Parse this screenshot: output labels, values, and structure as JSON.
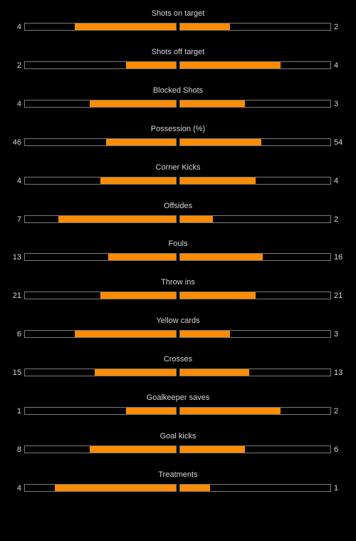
{
  "colors": {
    "background": "#000000",
    "bar_fill": "#ff8c00",
    "bar_border": "#7a7a7a",
    "text": "#d6d6d6"
  },
  "stats": [
    {
      "title": "Shots on target",
      "home": "4",
      "away": "2",
      "home_share": 0.67,
      "away_share": 0.33
    },
    {
      "title": "Shots off target",
      "home": "2",
      "away": "4",
      "home_share": 0.33,
      "away_share": 0.67
    },
    {
      "title": "Blocked Shots",
      "home": "4",
      "away": "3",
      "home_share": 0.57,
      "away_share": 0.43
    },
    {
      "title": "Possession (%)",
      "home": "46",
      "away": "54",
      "home_share": 0.46,
      "away_share": 0.54
    },
    {
      "title": "Corner Kicks",
      "home": "4",
      "away": "4",
      "home_share": 0.5,
      "away_share": 0.5
    },
    {
      "title": "Offsides",
      "home": "7",
      "away": "2",
      "home_share": 0.78,
      "away_share": 0.22
    },
    {
      "title": "Fouls",
      "home": "13",
      "away": "16",
      "home_share": 0.45,
      "away_share": 0.55
    },
    {
      "title": "Throw ins",
      "home": "21",
      "away": "21",
      "home_share": 0.5,
      "away_share": 0.5
    },
    {
      "title": "Yellow cards",
      "home": "6",
      "away": "3",
      "home_share": 0.67,
      "away_share": 0.33
    },
    {
      "title": "Crosses",
      "home": "15",
      "away": "13",
      "home_share": 0.54,
      "away_share": 0.46
    },
    {
      "title": "Goalkeeper saves",
      "home": "1",
      "away": "2",
      "home_share": 0.33,
      "away_share": 0.67
    },
    {
      "title": "Goal kicks",
      "home": "8",
      "away": "6",
      "home_share": 0.57,
      "away_share": 0.43
    },
    {
      "title": "Treatments",
      "home": "4",
      "away": "1",
      "home_share": 0.8,
      "away_share": 0.2
    }
  ]
}
